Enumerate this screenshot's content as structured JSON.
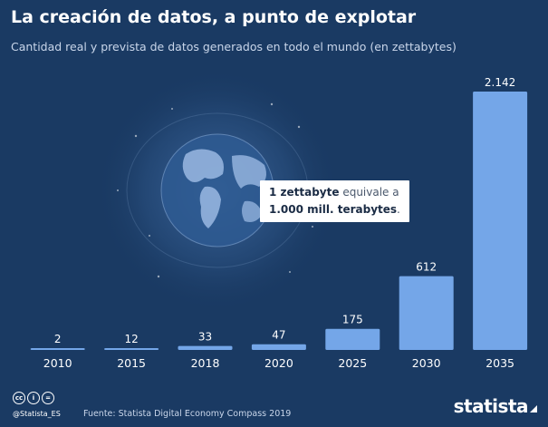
{
  "header": {
    "title": "La creación de datos, a punto de explotar",
    "subtitle": "Cantidad real y prevista de datos generados en todo el mundo (en zettabytes)"
  },
  "callout": {
    "line1_bold": "1 zettabyte",
    "line1_rest": " equivale a",
    "line2_bold": "1.000 mill. terabytes",
    "line2_rest": "."
  },
  "footer": {
    "cc_icons": [
      "cc",
      "i",
      "="
    ],
    "handle": "@Statista_ES",
    "source": "Fuente: Statista Digital Economy Compass 2019",
    "brand": "statista"
  },
  "colors": {
    "background": "#1a3a63",
    "bar": "#74a6e8",
    "text": "#ffffff"
  },
  "chart_data": {
    "type": "bar",
    "title": "La creación de datos, a punto de explotar",
    "subtitle": "Cantidad real y prevista de datos generados en todo el mundo (en zettabytes)",
    "categories": [
      "2010",
      "2015",
      "2018",
      "2020",
      "2025",
      "2030",
      "2035"
    ],
    "values": [
      2,
      12,
      33,
      47,
      175,
      612,
      2142
    ],
    "value_labels": [
      "2",
      "12",
      "33",
      "47",
      "175",
      "612",
      "2.142"
    ],
    "ylim": [
      0,
      2142
    ],
    "grid": false,
    "legend": "none"
  }
}
